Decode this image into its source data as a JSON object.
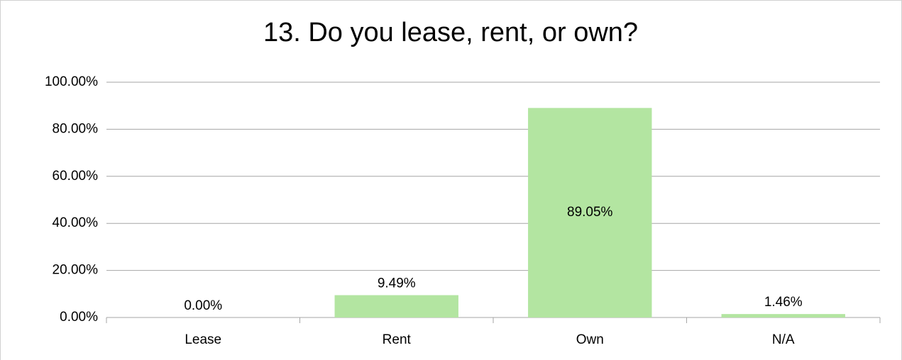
{
  "chart_data": {
    "type": "bar",
    "title": "13. Do you lease, rent, or own?",
    "categories": [
      "Lease",
      "Rent",
      "Own",
      "N/A"
    ],
    "values": [
      0,
      9.49,
      89.05,
      1.46
    ],
    "value_labels": [
      "0.00%",
      "9.49%",
      "89.05%",
      "1.46%"
    ],
    "color": "#b3e5a1",
    "ylim": [
      0,
      100
    ],
    "yticks": [
      {
        "value": 0,
        "label": "0.00%"
      },
      {
        "value": 20,
        "label": "20.00%"
      },
      {
        "value": 40,
        "label": "40.00%"
      },
      {
        "value": 60,
        "label": "60.00%"
      },
      {
        "value": 80,
        "label": "80.00%"
      },
      {
        "value": 100,
        "label": "100.00%"
      }
    ],
    "grid": true
  }
}
